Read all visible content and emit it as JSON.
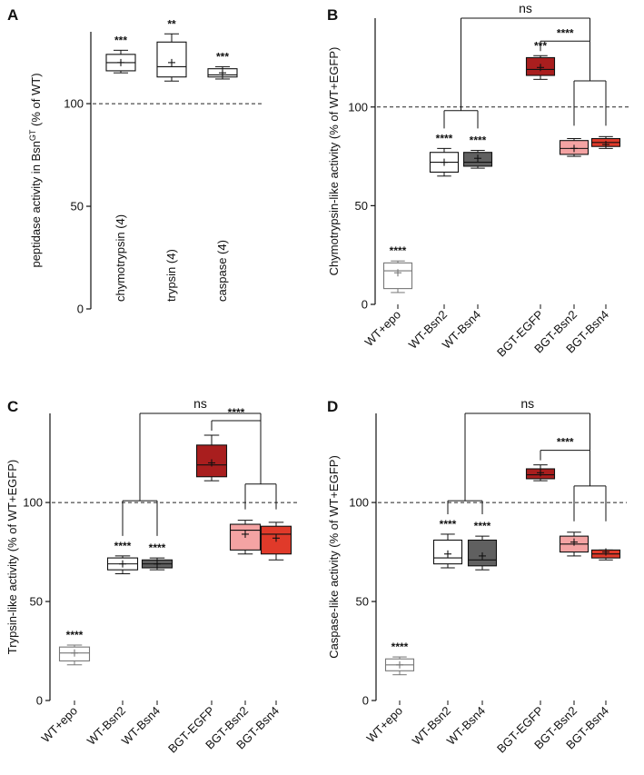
{
  "chart_data": [
    {
      "panel": "A",
      "type": "box",
      "ylabel": "peptidase activity in Bsn",
      "ylabel_sup": "GT",
      "ylabel_suffix": " (% of WT)",
      "ylim": [
        0,
        135
      ],
      "yticks": [
        0,
        50,
        100
      ],
      "reference_line": 100,
      "categories": [
        "chymotrypsin (4)",
        "trypsin (4)",
        "caspase (4)"
      ],
      "boxes": [
        {
          "min": 115,
          "q1": 116,
          "median": 120,
          "q3": 124,
          "max": 126,
          "mean": 120,
          "sig": "***",
          "color": "#ffffff"
        },
        {
          "min": 111,
          "q1": 113,
          "median": 118,
          "q3": 130,
          "max": 134,
          "mean": 120,
          "sig": "**",
          "color": "#ffffff"
        },
        {
          "min": 112,
          "q1": 113,
          "median": 114,
          "q3": 117,
          "max": 118,
          "mean": 115,
          "sig": "***",
          "color": "#ffffff"
        }
      ]
    },
    {
      "panel": "B",
      "type": "box",
      "ylabel": "Chymotrypsin-like activity (% of  WT+EGFP)",
      "ylim": [
        0,
        145
      ],
      "yticks": [
        0,
        50,
        100
      ],
      "reference_line": 100,
      "categories": [
        "WT+epo",
        "WT-Bsn2",
        "WT-Bsn4",
        "BGT-EGFP",
        "BGT-Bsn2",
        "BGT-Bsn4"
      ],
      "boxes": [
        {
          "min": 6,
          "q1": 8,
          "median": 17,
          "q3": 21,
          "max": 22,
          "mean": 16,
          "sig": "****",
          "color": "#ffffff"
        },
        {
          "min": 65,
          "q1": 67,
          "median": 72,
          "q3": 77,
          "max": 79,
          "mean": 72,
          "sig": "****",
          "color": "#ffffff"
        },
        {
          "min": 69,
          "q1": 70,
          "median": 72,
          "q3": 77,
          "max": 78,
          "mean": 74,
          "sig": "****",
          "color": "#606060"
        },
        {
          "min": 114,
          "q1": 116,
          "median": 119,
          "q3": 125,
          "max": 126,
          "mean": 120,
          "sig": "***",
          "color": "#a91e1e"
        },
        {
          "min": 75,
          "q1": 76,
          "median": 79,
          "q3": 83,
          "max": 84,
          "mean": 79,
          "sig": "",
          "color": "#f4a3a3"
        },
        {
          "min": 79,
          "q1": 80,
          "median": 82,
          "q3": 84,
          "max": 85,
          "mean": 81,
          "sig": "",
          "color": "#e03a2a"
        }
      ],
      "comparisons": [
        {
          "label": "ns"
        },
        {
          "label": "****"
        }
      ]
    },
    {
      "panel": "C",
      "type": "box",
      "ylabel": "Trypsin-like activity (% of  WT+EGFP)",
      "ylim": [
        0,
        145
      ],
      "yticks": [
        0,
        50,
        100
      ],
      "reference_line": 100,
      "categories": [
        "WT+epo",
        "WT-Bsn2",
        "WT-Bsn4",
        "BGT-EGFP",
        "BGT-Bsn2",
        "BGT-Bsn4"
      ],
      "boxes": [
        {
          "min": 18,
          "q1": 20,
          "median": 24,
          "q3": 27,
          "max": 28,
          "mean": 24,
          "sig": "****",
          "color": "#ffffff"
        },
        {
          "min": 64,
          "q1": 66,
          "median": 69,
          "q3": 72,
          "max": 73,
          "mean": 69,
          "sig": "****",
          "color": "#ffffff"
        },
        {
          "min": 66,
          "q1": 67,
          "median": 69,
          "q3": 71,
          "max": 72,
          "mean": 69,
          "sig": "****",
          "color": "#606060"
        },
        {
          "min": 111,
          "q1": 113,
          "median": 119,
          "q3": 129,
          "max": 134,
          "mean": 120,
          "sig": "",
          "color": "#a91e1e"
        },
        {
          "min": 74,
          "q1": 76,
          "median": 86,
          "q3": 89,
          "max": 91,
          "mean": 84,
          "sig": "",
          "color": "#f4a3a3"
        },
        {
          "min": 71,
          "q1": 74,
          "median": 84,
          "q3": 88,
          "max": 90,
          "mean": 82,
          "sig": "",
          "color": "#e03a2a"
        }
      ],
      "comparisons": [
        {
          "label": "ns"
        },
        {
          "label": "****"
        }
      ]
    },
    {
      "panel": "D",
      "type": "box",
      "ylabel": "Caspase-like activity (% of  WT+EGFP)",
      "ylim": [
        0,
        145
      ],
      "yticks": [
        0,
        50,
        100
      ],
      "reference_line": 100,
      "categories": [
        "WT+epo",
        "WT-Bsn2",
        "WT-Bsn4",
        "BGT-EGFP",
        "BGT-Bsn2",
        "BGT-Bsn4"
      ],
      "boxes": [
        {
          "min": 13,
          "q1": 15,
          "median": 18,
          "q3": 21,
          "max": 22,
          "mean": 18,
          "sig": "****",
          "color": "#ffffff"
        },
        {
          "min": 67,
          "q1": 69,
          "median": 72,
          "q3": 81,
          "max": 84,
          "mean": 74,
          "sig": "****",
          "color": "#ffffff"
        },
        {
          "min": 66,
          "q1": 68,
          "median": 71,
          "q3": 81,
          "max": 83,
          "mean": 73,
          "sig": "****",
          "color": "#606060"
        },
        {
          "min": 111,
          "q1": 112,
          "median": 114,
          "q3": 117,
          "max": 119,
          "mean": 115,
          "sig": "",
          "color": "#a91e1e"
        },
        {
          "min": 73,
          "q1": 75,
          "median": 79,
          "q3": 83,
          "max": 85,
          "mean": 80,
          "sig": "",
          "color": "#f4a3a3"
        },
        {
          "min": 71,
          "q1": 72,
          "median": 74,
          "q3": 76,
          "max": 76,
          "mean": 75,
          "sig": "",
          "color": "#e03a2a"
        }
      ],
      "comparisons": [
        {
          "label": "ns"
        },
        {
          "label": "****"
        }
      ]
    }
  ]
}
